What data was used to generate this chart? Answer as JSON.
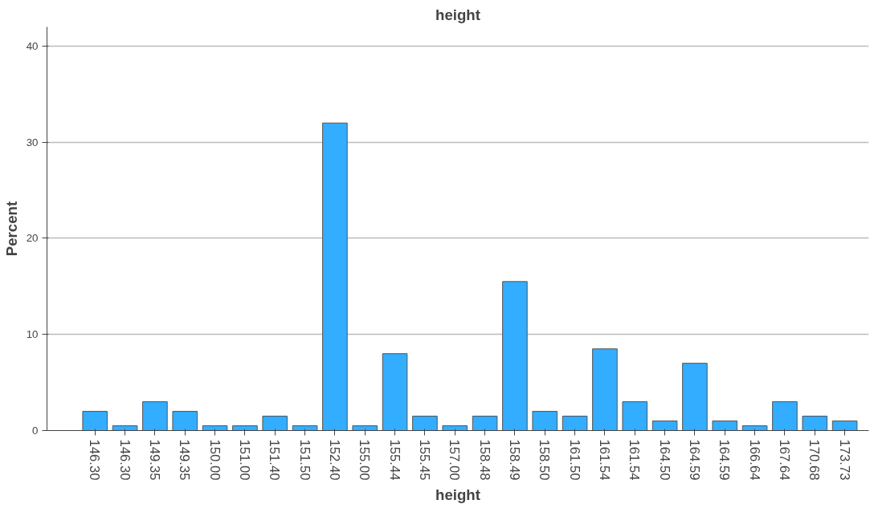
{
  "chart_data": {
    "type": "bar",
    "title": "height",
    "xlabel": "height",
    "ylabel": "Percent",
    "categories": [
      "146.30",
      "146.30",
      "149.35",
      "149.35",
      "150.00",
      "151.00",
      "151.40",
      "151.50",
      "152.40",
      "155.00",
      "155.44",
      "155.45",
      "157.00",
      "158.48",
      "158.49",
      "158.50",
      "161.50",
      "161.54",
      "161.54",
      "164.50",
      "164.59",
      "164.59",
      "166.64",
      "167.64",
      "170.68",
      "173.73"
    ],
    "values": [
      2,
      0.5,
      3,
      2,
      0.5,
      0.5,
      1.5,
      0.5,
      32,
      0.5,
      8,
      1.5,
      0.5,
      1.5,
      15.5,
      2,
      1.5,
      8.5,
      3,
      1,
      7,
      1,
      0.5,
      3,
      1.5,
      1
    ],
    "color": "#33adff",
    "ylim": [
      0,
      42
    ],
    "yticks": [
      0,
      10,
      20,
      30,
      40
    ],
    "grid": "y"
  }
}
